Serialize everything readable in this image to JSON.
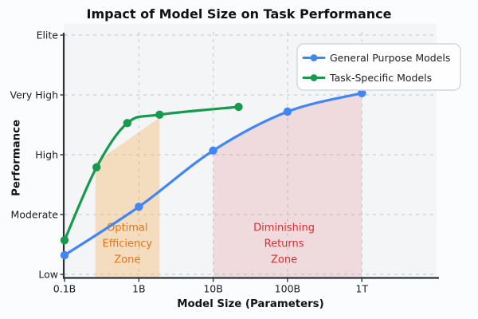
{
  "chart_data": {
    "type": "line",
    "title": "Impact of Model Size on Task Performance",
    "xlabel": "Model Size (Parameters)",
    "ylabel": "Performance",
    "x_scale": "log",
    "grid": {
      "style": "dashed",
      "color": "#cbd0d4"
    },
    "legend": {
      "position": "upper right"
    },
    "x_ticks": [
      {
        "value": 0.1,
        "label": "0.1B"
      },
      {
        "value": 1,
        "label": "1B"
      },
      {
        "value": 10,
        "label": "10B"
      },
      {
        "value": 100,
        "label": "100B"
      },
      {
        "value": 1000,
        "label": "1T"
      }
    ],
    "y_ticks": [
      {
        "value": 0,
        "label": "Low"
      },
      {
        "value": 1,
        "label": "Moderate"
      },
      {
        "value": 2,
        "label": "High"
      },
      {
        "value": 3,
        "label": "Very High"
      },
      {
        "value": 4,
        "label": "Elite"
      }
    ],
    "series": [
      {
        "name": "General Purpose Models",
        "color": "#4285f4",
        "x": [
          0.1,
          1,
          10,
          100,
          1000
        ],
        "y": [
          0.32,
          1.13,
          2.07,
          2.72,
          3.03
        ]
      },
      {
        "name": "Task-Specific Models",
        "color": "#179a4e",
        "x": [
          0.1,
          0.27,
          0.7,
          1.9,
          22
        ],
        "y": [
          0.57,
          1.79,
          2.53,
          2.67,
          2.8
        ]
      }
    ],
    "zones": [
      {
        "name": "Optimal Efficiency Zone",
        "shape": "band",
        "label_lines": [
          "Optimal",
          "Efficiency",
          "Zone"
        ],
        "x_range": [
          0.26,
          1.9
        ],
        "top_perf": [
          1.87,
          2.62
        ],
        "fill": "rgba(245,174,82,0.34)",
        "label_color": "#e0751c",
        "label_x": 0.7,
        "label_y": 0.52
      },
      {
        "name": "Diminishing Returns Zone",
        "shape": "under_series",
        "label_lines": [
          "Diminishing",
          "Returns",
          "Zone"
        ],
        "x_range": [
          10,
          1000
        ],
        "series_index": 0,
        "from_index": 2,
        "to_index": 4,
        "fill": "rgba(227,116,124,0.20)",
        "label_color": "#d43030",
        "label_x": 90,
        "label_y": 0.52
      }
    ]
  }
}
